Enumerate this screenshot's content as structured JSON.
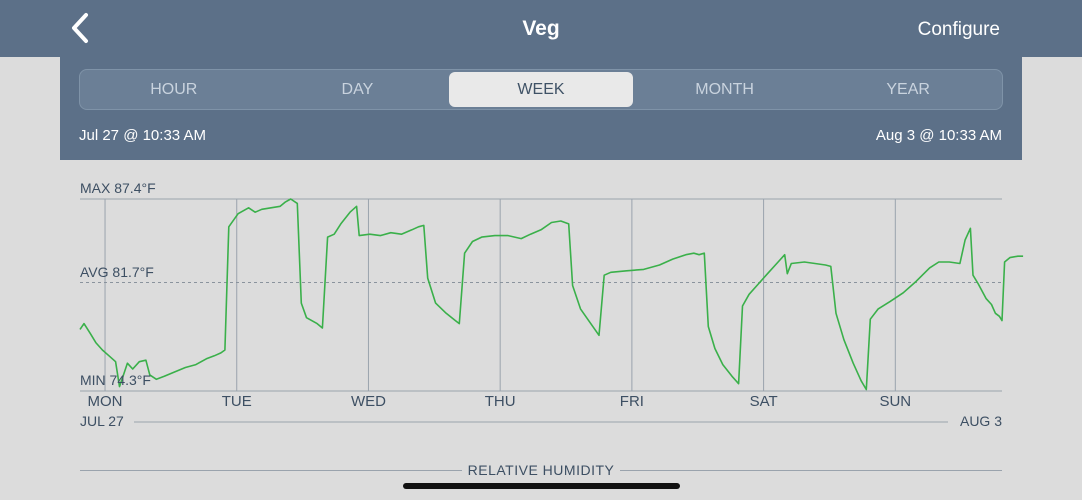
{
  "nav": {
    "title": "Veg",
    "configure_label": "Configure",
    "back_icon": "chevron-left-icon"
  },
  "tabs": [
    {
      "label": "HOUR",
      "active": false
    },
    {
      "label": "DAY",
      "active": false
    },
    {
      "label": "WEEK",
      "active": true
    },
    {
      "label": "MONTH",
      "active": false
    },
    {
      "label": "YEAR",
      "active": false
    }
  ],
  "range": {
    "start": "Jul 27 @ 10:33 AM",
    "end": "Aug 3 @ 10:33 AM"
  },
  "chart_data": {
    "type": "line",
    "max_label": "MAX 87.4°F",
    "avg_label": "AVG 81.7°F",
    "min_label": "MIN 74.3°F",
    "ylim": [
      74.3,
      87.4
    ],
    "avg": 81.7,
    "xlim": [
      0,
      7
    ],
    "day_ticks": [
      {
        "x": 0.19,
        "label": "MON"
      },
      {
        "x": 1.19,
        "label": "TUE"
      },
      {
        "x": 2.19,
        "label": "WED"
      },
      {
        "x": 3.19,
        "label": "THU"
      },
      {
        "x": 4.19,
        "label": "FRI"
      },
      {
        "x": 5.19,
        "label": "SAT"
      },
      {
        "x": 6.19,
        "label": "SUN"
      }
    ],
    "x_start_label": "JUL 27",
    "x_end_label": "AUG 3",
    "grid": true,
    "series": [
      {
        "color": "#3ab04a",
        "points": [
          [
            0.0,
            78.5
          ],
          [
            0.03,
            78.9
          ],
          [
            0.08,
            78.2
          ],
          [
            0.12,
            77.6
          ],
          [
            0.17,
            77.1
          ],
          [
            0.22,
            76.7
          ],
          [
            0.27,
            76.3
          ],
          [
            0.3,
            74.6
          ],
          [
            0.33,
            75.4
          ],
          [
            0.36,
            76.2
          ],
          [
            0.4,
            75.8
          ],
          [
            0.45,
            76.3
          ],
          [
            0.5,
            76.4
          ],
          [
            0.53,
            75.4
          ],
          [
            0.58,
            75.1
          ],
          [
            0.64,
            75.3
          ],
          [
            0.72,
            75.6
          ],
          [
            0.8,
            75.9
          ],
          [
            0.88,
            76.1
          ],
          [
            0.96,
            76.5
          ],
          [
            1.02,
            76.7
          ],
          [
            1.07,
            76.9
          ],
          [
            1.1,
            77.1
          ],
          [
            1.13,
            85.5
          ],
          [
            1.2,
            86.4
          ],
          [
            1.28,
            86.8
          ],
          [
            1.33,
            86.5
          ],
          [
            1.38,
            86.7
          ],
          [
            1.45,
            86.8
          ],
          [
            1.52,
            86.9
          ],
          [
            1.56,
            87.2
          ],
          [
            1.6,
            87.4
          ],
          [
            1.65,
            87.1
          ],
          [
            1.68,
            80.3
          ],
          [
            1.72,
            79.3
          ],
          [
            1.8,
            78.9
          ],
          [
            1.84,
            78.6
          ],
          [
            1.88,
            84.8
          ],
          [
            1.93,
            85.0
          ],
          [
            1.98,
            85.7
          ],
          [
            2.05,
            86.5
          ],
          [
            2.1,
            86.9
          ],
          [
            2.12,
            84.9
          ],
          [
            2.2,
            85.0
          ],
          [
            2.28,
            84.9
          ],
          [
            2.36,
            85.1
          ],
          [
            2.44,
            85.0
          ],
          [
            2.52,
            85.3
          ],
          [
            2.57,
            85.5
          ],
          [
            2.61,
            85.6
          ],
          [
            2.64,
            82.0
          ],
          [
            2.7,
            80.3
          ],
          [
            2.78,
            79.6
          ],
          [
            2.85,
            79.1
          ],
          [
            2.88,
            78.9
          ],
          [
            2.92,
            83.7
          ],
          [
            2.98,
            84.5
          ],
          [
            3.05,
            84.8
          ],
          [
            3.15,
            84.9
          ],
          [
            3.25,
            84.9
          ],
          [
            3.35,
            84.7
          ],
          [
            3.42,
            85.0
          ],
          [
            3.5,
            85.3
          ],
          [
            3.58,
            85.8
          ],
          [
            3.65,
            85.9
          ],
          [
            3.71,
            85.7
          ],
          [
            3.74,
            81.5
          ],
          [
            3.8,
            79.9
          ],
          [
            3.87,
            79.0
          ],
          [
            3.94,
            78.1
          ],
          [
            3.98,
            82.2
          ],
          [
            4.03,
            82.4
          ],
          [
            4.15,
            82.5
          ],
          [
            4.28,
            82.6
          ],
          [
            4.4,
            82.9
          ],
          [
            4.5,
            83.3
          ],
          [
            4.6,
            83.6
          ],
          [
            4.66,
            83.7
          ],
          [
            4.7,
            83.6
          ],
          [
            4.74,
            83.7
          ],
          [
            4.77,
            78.7
          ],
          [
            4.82,
            77.2
          ],
          [
            4.88,
            76.1
          ],
          [
            4.95,
            75.3
          ],
          [
            5.0,
            74.8
          ],
          [
            5.03,
            80.1
          ],
          [
            5.08,
            80.9
          ],
          [
            5.15,
            81.6
          ],
          [
            5.22,
            82.3
          ],
          [
            5.3,
            83.1
          ],
          [
            5.35,
            83.6
          ],
          [
            5.37,
            82.3
          ],
          [
            5.4,
            83.0
          ],
          [
            5.5,
            83.1
          ],
          [
            5.58,
            83.0
          ],
          [
            5.66,
            82.9
          ],
          [
            5.7,
            82.8
          ],
          [
            5.74,
            79.6
          ],
          [
            5.8,
            77.8
          ],
          [
            5.87,
            76.2
          ],
          [
            5.93,
            75.0
          ],
          [
            5.97,
            74.4
          ],
          [
            6.0,
            79.2
          ],
          [
            6.06,
            79.9
          ],
          [
            6.15,
            80.4
          ],
          [
            6.25,
            81.0
          ],
          [
            6.35,
            81.8
          ],
          [
            6.45,
            82.7
          ],
          [
            6.52,
            83.1
          ],
          [
            6.6,
            83.1
          ],
          [
            6.68,
            83.0
          ],
          [
            6.72,
            84.6
          ],
          [
            6.76,
            85.4
          ],
          [
            6.78,
            82.2
          ],
          [
            6.82,
            81.6
          ],
          [
            6.88,
            80.6
          ],
          [
            6.92,
            80.2
          ],
          [
            6.95,
            79.6
          ],
          [
            6.98,
            79.4
          ],
          [
            7.0,
            79.1
          ],
          [
            7.02,
            83.1
          ],
          [
            7.06,
            83.4
          ],
          [
            7.12,
            83.5
          ],
          [
            7.16,
            83.5
          ]
        ]
      }
    ]
  },
  "humidity_title": "RELATIVE HUMIDITY"
}
